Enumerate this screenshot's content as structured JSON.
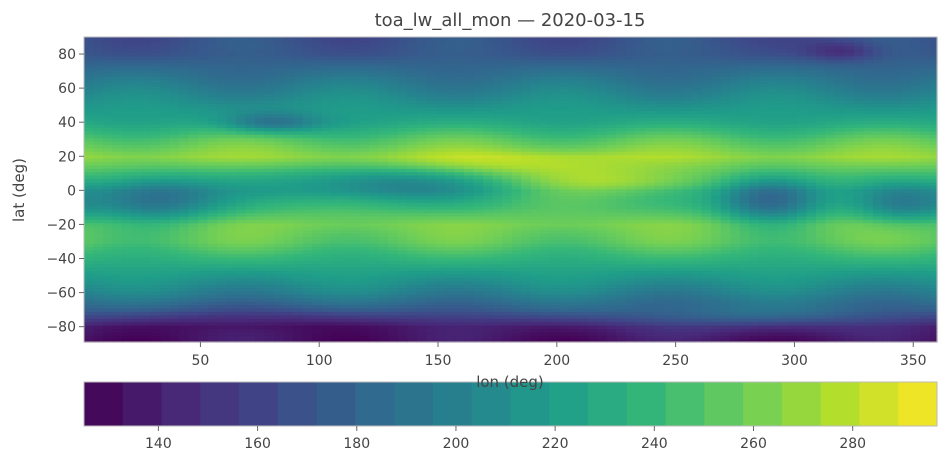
{
  "chart_data": {
    "type": "heatmap",
    "title": "toa_lw_all_mon — 2020-03-15",
    "xlabel": "lon (deg)",
    "ylabel": "lat (deg)",
    "xlim": [
      1,
      360
    ],
    "ylim": [
      -89,
      90
    ],
    "x_ticks": [
      50,
      100,
      150,
      200,
      250,
      300,
      350
    ],
    "y_ticks": [
      80,
      60,
      40,
      20,
      0,
      -20,
      -40,
      -60,
      -80
    ],
    "colorbar": {
      "orientation": "horizontal",
      "location": "bottom",
      "range": [
        125,
        297
      ],
      "ticks": [
        140,
        160,
        180,
        200,
        220,
        240,
        260,
        280
      ],
      "colormap": "viridis"
    },
    "colormap_stops": [
      "#440154",
      "#482878",
      "#3e4989",
      "#31688e",
      "#26828e",
      "#1f9e89",
      "#35b779",
      "#6ece58",
      "#b5de2b",
      "#fde725"
    ],
    "grid": false,
    "lat_profile": [
      {
        "lat": -90,
        "value": 132
      },
      {
        "lat": -80,
        "value": 138
      },
      {
        "lat": -70,
        "value": 175
      },
      {
        "lat": -60,
        "value": 200
      },
      {
        "lat": -50,
        "value": 218
      },
      {
        "lat": -40,
        "value": 236
      },
      {
        "lat": -30,
        "value": 254
      },
      {
        "lat": -20,
        "value": 262
      },
      {
        "lat": -10,
        "value": 248
      },
      {
        "lat": 0,
        "value": 240
      },
      {
        "lat": 10,
        "value": 252
      },
      {
        "lat": 20,
        "value": 270
      },
      {
        "lat": 30,
        "value": 252
      },
      {
        "lat": 40,
        "value": 228
      },
      {
        "lat": 50,
        "value": 214
      },
      {
        "lat": 60,
        "value": 200
      },
      {
        "lat": 70,
        "value": 186
      },
      {
        "lat": 80,
        "value": 172
      },
      {
        "lat": 90,
        "value": 168
      }
    ],
    "features": [
      {
        "lon": 30,
        "lat": -5,
        "lon_width": 28,
        "lat_width": 14,
        "delta": -60
      },
      {
        "lon": 125,
        "lat": 5,
        "lon_width": 45,
        "lat_width": 12,
        "delta": -45
      },
      {
        "lon": 290,
        "lat": -5,
        "lon_width": 22,
        "lat_width": 14,
        "delta": -70
      },
      {
        "lon": 345,
        "lat": -8,
        "lon_width": 20,
        "lat_width": 12,
        "delta": -40
      },
      {
        "lon": 165,
        "lat": 15,
        "lon_width": 60,
        "lat_width": 8,
        "delta": 20
      },
      {
        "lon": 230,
        "lat": 5,
        "lon_width": 40,
        "lat_width": 8,
        "delta": 25
      },
      {
        "lon": 80,
        "lat": 40,
        "lon_width": 20,
        "lat_width": 6,
        "delta": -40
      },
      {
        "lon": 320,
        "lat": 82,
        "lon_width": 15,
        "lat_width": 6,
        "delta": -25
      },
      {
        "lon": 75,
        "lat": -75,
        "lon_width": 55,
        "lat_width": 8,
        "delta": -10
      },
      {
        "lon": 280,
        "lat": -75,
        "lon_width": 60,
        "lat_width": 8,
        "delta": 20
      }
    ]
  }
}
